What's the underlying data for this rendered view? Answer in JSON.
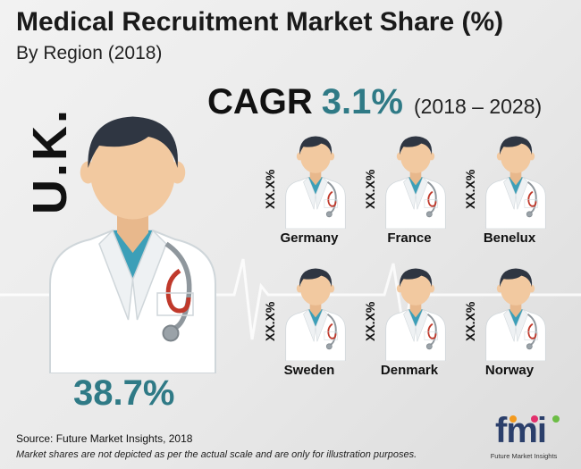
{
  "title": "Medical Recruitment Market Share (%)",
  "subtitle": "By Region (2018)",
  "cagr": {
    "label": "CAGR",
    "value": "3.1%",
    "range": "(2018 – 2028)"
  },
  "featured": {
    "region": "U.K.",
    "share": "38.7%"
  },
  "regions": [
    {
      "name": "Germany",
      "share": "XX.X%"
    },
    {
      "name": "France",
      "share": "XX.X%"
    },
    {
      "name": "Benelux",
      "share": "XX.X%"
    },
    {
      "name": "Sweden",
      "share": "XX.X%"
    },
    {
      "name": "Denmark",
      "share": "XX.X%"
    },
    {
      "name": "Norway",
      "share": "XX.X%"
    }
  ],
  "source": "Source: Future Market Insights, 2018",
  "note": "Market shares are not depicted as per the actual scale and are only for illustration purposes.",
  "logo": {
    "mark": "fmi",
    "tagline": "Future Market Insights"
  },
  "colors": {
    "accent": "#2f7a86",
    "scrubs": "#3c9fb8",
    "hair": "#2f3642",
    "skin": "#f2c9a0",
    "coat": "#ffffff",
    "logo": "#2b3f6b",
    "logo_dot_orange": "#f39a1e",
    "logo_dot_pink": "#e2306c",
    "logo_dot_green": "#6cbd45"
  },
  "icons": [
    "doctor-icon",
    "stethoscope-icon",
    "ecg-line"
  ]
}
